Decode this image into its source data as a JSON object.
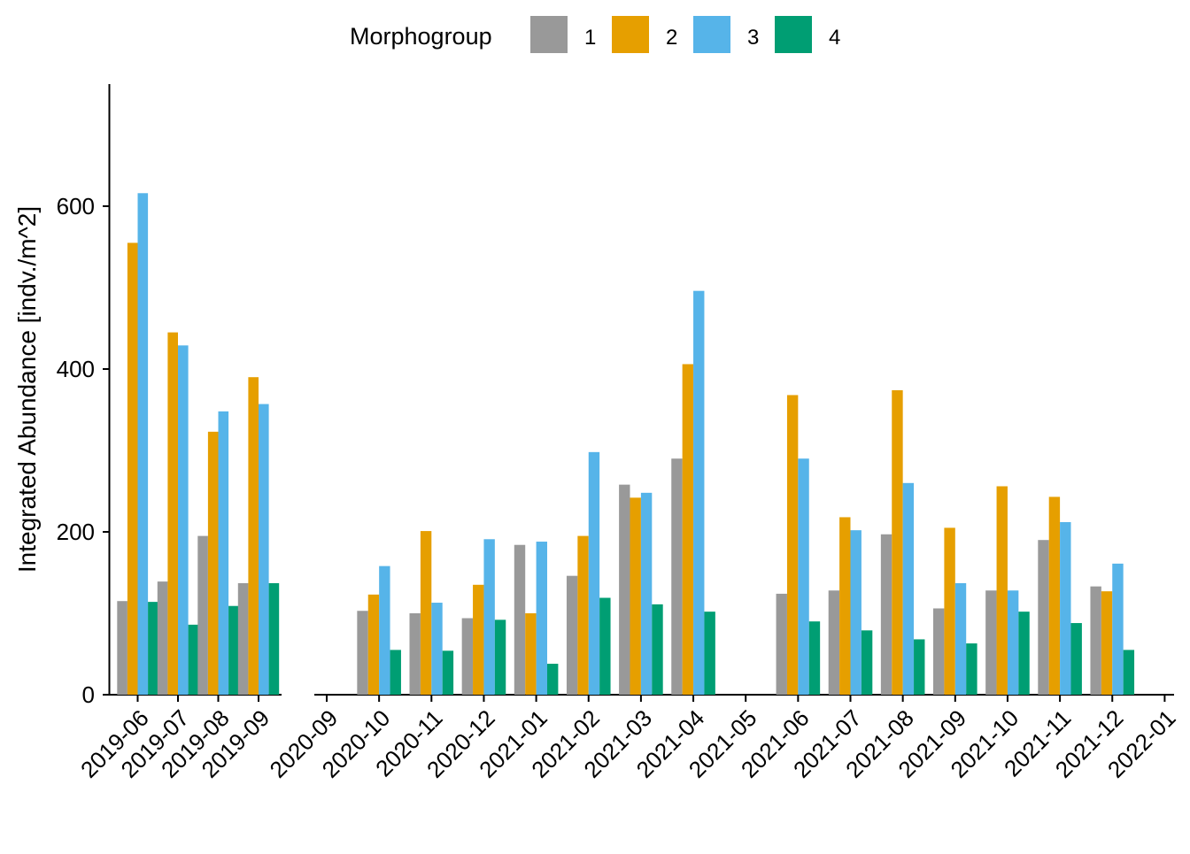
{
  "chart_data": {
    "type": "bar",
    "ylabel": "Integrated Abundance [indv./m^2]",
    "xlabel": "",
    "ylim": [
      0,
      750
    ],
    "yticks": [
      0,
      200,
      400,
      600
    ],
    "grid": false,
    "legend": {
      "title": "Morphogroup",
      "position": "top"
    },
    "series": [
      {
        "name": "1",
        "color": "#999999"
      },
      {
        "name": "2",
        "color": "#E69F00"
      },
      {
        "name": "3",
        "color": "#56B4E9"
      },
      {
        "name": "4",
        "color": "#009E73"
      }
    ],
    "panels": [
      {
        "categories": [
          "2019-06",
          "2019-07",
          "2019-08",
          "2019-09"
        ],
        "tick_labels": [
          "2019-06",
          "2019-07",
          "2019-08",
          "2019-09"
        ],
        "values": [
          [
            115,
            555,
            616,
            114
          ],
          [
            139,
            445,
            429,
            86
          ],
          [
            195,
            323,
            348,
            109
          ],
          [
            137,
            390,
            357,
            137
          ]
        ]
      },
      {
        "tick_labels": [
          "2020-09",
          "2020-10",
          "2020-11",
          "2020-12",
          "2021-01",
          "2021-02",
          "2021-03",
          "2021-04",
          "2021-05",
          "2021-06",
          "2021-07",
          "2021-08",
          "2021-09",
          "2021-10",
          "2021-11",
          "2021-12",
          "2022-01"
        ],
        "categories": [
          "2020-10",
          "2020-11",
          "2020-12",
          "2021-01",
          "2021-02",
          "2021-03",
          "2021-04",
          "2021-06",
          "2021-07",
          "2021-08",
          "2021-09",
          "2021-10",
          "2021-11",
          "2021-12"
        ],
        "values": [
          [
            103,
            123,
            158,
            55
          ],
          [
            100,
            201,
            113,
            54
          ],
          [
            94,
            135,
            191,
            92
          ],
          [
            184,
            100,
            188,
            38
          ],
          [
            146,
            195,
            298,
            119
          ],
          [
            258,
            242,
            248,
            111
          ],
          [
            290,
            406,
            496,
            102
          ],
          [
            124,
            368,
            290,
            90
          ],
          [
            128,
            218,
            202,
            79
          ],
          [
            197,
            374,
            260,
            68
          ],
          [
            106,
            205,
            137,
            63
          ],
          [
            128,
            256,
            128,
            102
          ],
          [
            190,
            243,
            212,
            88
          ],
          [
            133,
            127,
            161,
            55
          ]
        ]
      }
    ]
  }
}
